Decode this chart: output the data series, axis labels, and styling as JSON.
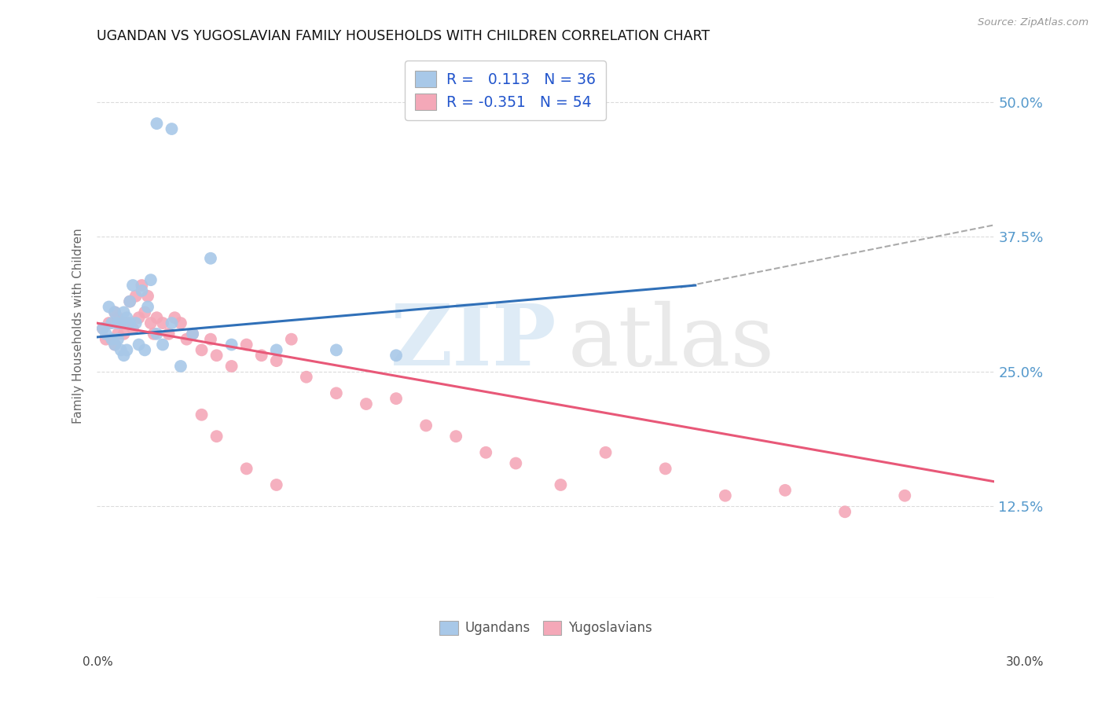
{
  "title": "UGANDAN VS YUGOSLAVIAN FAMILY HOUSEHOLDS WITH CHILDREN CORRELATION CHART",
  "source": "Source: ZipAtlas.com",
  "ylabel": "Family Households with Children",
  "ytick_labels": [
    "12.5%",
    "25.0%",
    "37.5%",
    "50.0%"
  ],
  "ytick_values": [
    0.125,
    0.25,
    0.375,
    0.5
  ],
  "xmin": 0.0,
  "xmax": 0.3,
  "ymin": 0.04,
  "ymax": 0.545,
  "legend_R_ugandan": "0.113",
  "legend_N_ugandan": "36",
  "legend_R_yugoslav": "-0.351",
  "legend_N_yugoslav": "54",
  "ugandan_color": "#a8c8e8",
  "yugoslav_color": "#f4a8b8",
  "ugandan_line_color": "#3070b8",
  "yugoslav_line_color": "#e85878",
  "ugandan_x": [
    0.002,
    0.003,
    0.004,
    0.005,
    0.005,
    0.006,
    0.006,
    0.007,
    0.007,
    0.008,
    0.008,
    0.009,
    0.009,
    0.01,
    0.01,
    0.011,
    0.011,
    0.012,
    0.013,
    0.014,
    0.015,
    0.016,
    0.017,
    0.018,
    0.02,
    0.022,
    0.025,
    0.028,
    0.032,
    0.038,
    0.045,
    0.06,
    0.08,
    0.1,
    0.02,
    0.025
  ],
  "ugandan_y": [
    0.29,
    0.285,
    0.31,
    0.295,
    0.28,
    0.305,
    0.275,
    0.295,
    0.28,
    0.295,
    0.27,
    0.305,
    0.265,
    0.3,
    0.27,
    0.295,
    0.315,
    0.33,
    0.295,
    0.275,
    0.325,
    0.27,
    0.31,
    0.335,
    0.285,
    0.275,
    0.295,
    0.255,
    0.285,
    0.355,
    0.275,
    0.27,
    0.27,
    0.265,
    0.48,
    0.475
  ],
  "yugoslav_x": [
    0.002,
    0.003,
    0.004,
    0.005,
    0.006,
    0.006,
    0.007,
    0.007,
    0.008,
    0.009,
    0.01,
    0.011,
    0.012,
    0.013,
    0.014,
    0.015,
    0.016,
    0.017,
    0.018,
    0.019,
    0.02,
    0.022,
    0.024,
    0.026,
    0.028,
    0.03,
    0.032,
    0.035,
    0.038,
    0.04,
    0.045,
    0.05,
    0.055,
    0.06,
    0.065,
    0.07,
    0.08,
    0.09,
    0.1,
    0.11,
    0.12,
    0.13,
    0.14,
    0.155,
    0.17,
    0.19,
    0.21,
    0.23,
    0.25,
    0.27,
    0.035,
    0.04,
    0.05,
    0.06
  ],
  "yugoslav_y": [
    0.29,
    0.28,
    0.295,
    0.28,
    0.305,
    0.275,
    0.3,
    0.285,
    0.295,
    0.285,
    0.295,
    0.315,
    0.29,
    0.32,
    0.3,
    0.33,
    0.305,
    0.32,
    0.295,
    0.285,
    0.3,
    0.295,
    0.285,
    0.3,
    0.295,
    0.28,
    0.285,
    0.27,
    0.28,
    0.265,
    0.255,
    0.275,
    0.265,
    0.26,
    0.28,
    0.245,
    0.23,
    0.22,
    0.225,
    0.2,
    0.19,
    0.175,
    0.165,
    0.145,
    0.175,
    0.16,
    0.135,
    0.14,
    0.12,
    0.135,
    0.21,
    0.19,
    0.16,
    0.145
  ],
  "ugandan_line_x": [
    0.0,
    0.2
  ],
  "ugandan_line_y": [
    0.282,
    0.33
  ],
  "yugoslav_line_x": [
    0.0,
    0.3
  ],
  "yugoslav_line_y": [
    0.295,
    0.148
  ],
  "dash_line_x": [
    0.195,
    0.3
  ],
  "dash_line_y": [
    0.328,
    0.386
  ],
  "background_color": "#ffffff",
  "grid_color": "#cccccc"
}
